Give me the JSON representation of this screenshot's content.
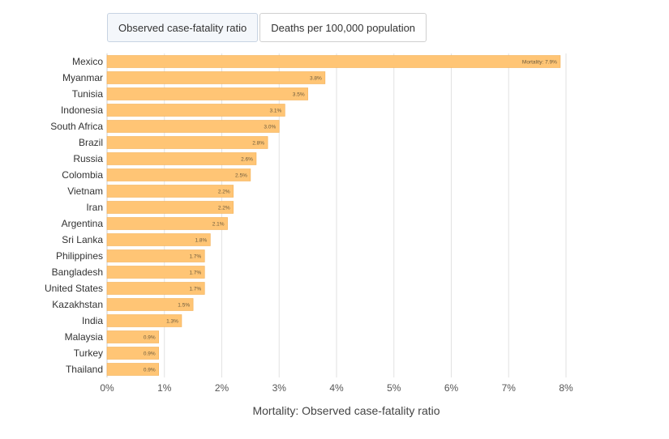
{
  "tabs": [
    {
      "label": "Observed case-fatality ratio",
      "active": true
    },
    {
      "label": "Deaths per 100,000 population",
      "active": false
    }
  ],
  "chart_data": {
    "type": "bar",
    "orientation": "horizontal",
    "categories": [
      "Mexico",
      "Myanmar",
      "Tunisia",
      "Indonesia",
      "South Africa",
      "Brazil",
      "Russia",
      "Colombia",
      "Vietnam",
      "Iran",
      "Argentina",
      "Sri Lanka",
      "Philippines",
      "Bangladesh",
      "United States",
      "Kazakhstan",
      "India",
      "Malaysia",
      "Turkey",
      "Thailand"
    ],
    "values": [
      7.9,
      3.8,
      3.5,
      3.1,
      3.0,
      2.8,
      2.6,
      2.5,
      2.2,
      2.2,
      2.1,
      1.8,
      1.7,
      1.7,
      1.7,
      1.5,
      1.3,
      0.9,
      0.9,
      0.9
    ],
    "value_labels": [
      "Mortality: 7.9%",
      "3.8%",
      "3.5%",
      "3.1%",
      "3.0%",
      "2.8%",
      "2.6%",
      "2.5%",
      "2.2%",
      "2.2%",
      "2.1%",
      "1.8%",
      "1.7%",
      "1.7%",
      "1.7%",
      "1.5%",
      "1.3%",
      "0.9%",
      "0.9%",
      "0.9%"
    ],
    "x_ticks": [
      "0%",
      "1%",
      "2%",
      "3%",
      "4%",
      "5%",
      "6%",
      "7%",
      "8%"
    ],
    "xlim": [
      0,
      8
    ],
    "xlabel": "Mortality: Observed case-fatality ratio",
    "grid": true,
    "bar_color": "#ffc575",
    "bar_edge_color": "#f3b055"
  }
}
